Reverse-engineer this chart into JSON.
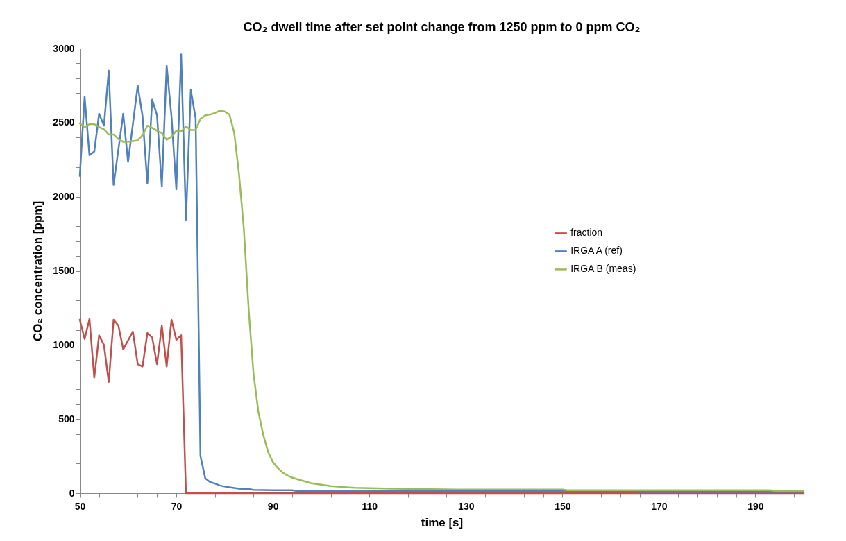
{
  "chart_data": {
    "type": "line",
    "title": "CO₂ dwell time after set point change from 1250 ppm to 0 ppm CO₂",
    "xlabel": "time [s]",
    "ylabel": "CO₂ concentration [ppm]",
    "xlim": [
      50,
      200
    ],
    "xticks": [
      50,
      {
        "value": 54,
        "label": null
      },
      {
        "value": 58,
        "label": null
      },
      {
        "value": 62,
        "label": null
      },
      {
        "value": 66,
        "label": null
      },
      70,
      {
        "value": 74,
        "label": null
      },
      {
        "value": 78,
        "label": null
      },
      {
        "value": 82,
        "label": null
      },
      {
        "value": 86,
        "label": null
      },
      90,
      {
        "value": 94,
        "label": null
      },
      {
        "value": 98,
        "label": null
      },
      {
        "value": 102,
        "label": null
      },
      {
        "value": 106,
        "label": null
      },
      110,
      {
        "value": 114,
        "label": null
      },
      {
        "value": 118,
        "label": null
      },
      {
        "value": 122,
        "label": null
      },
      {
        "value": 126,
        "label": null
      },
      130,
      {
        "value": 134,
        "label": null
      },
      {
        "value": 138,
        "label": null
      },
      {
        "value": 142,
        "label": null
      },
      {
        "value": 146,
        "label": null
      },
      150,
      {
        "value": 154,
        "label": null
      },
      {
        "value": 158,
        "label": null
      },
      {
        "value": 162,
        "label": null
      },
      {
        "value": 166,
        "label": null
      },
      170,
      {
        "value": 174,
        "label": null
      },
      {
        "value": 178,
        "label": null
      },
      {
        "value": 182,
        "label": null
      },
      {
        "value": 186,
        "label": null
      },
      190,
      {
        "value": 194,
        "label": null
      },
      {
        "value": 198,
        "label": null
      }
    ],
    "ylim": [
      0,
      3000
    ],
    "yticks": [
      0,
      {
        "value": 100,
        "label": null
      },
      {
        "value": 200,
        "label": null
      },
      {
        "value": 300,
        "label": null
      },
      {
        "value": 400,
        "label": null
      },
      500,
      {
        "value": 600,
        "label": null
      },
      {
        "value": 700,
        "label": null
      },
      {
        "value": 800,
        "label": null
      },
      {
        "value": 900,
        "label": null
      },
      1000,
      {
        "value": 1100,
        "label": null
      },
      {
        "value": 1200,
        "label": null
      },
      {
        "value": 1300,
        "label": null
      },
      {
        "value": 1400,
        "label": null
      },
      1500,
      {
        "value": 1600,
        "label": null
      },
      {
        "value": 1700,
        "label": null
      },
      {
        "value": 1800,
        "label": null
      },
      {
        "value": 1900,
        "label": null
      },
      2000,
      {
        "value": 2100,
        "label": null
      },
      {
        "value": 2200,
        "label": null
      },
      {
        "value": 2300,
        "label": null
      },
      {
        "value": 2400,
        "label": null
      },
      2500,
      {
        "value": 2600,
        "label": null
      },
      {
        "value": 2700,
        "label": null
      },
      {
        "value": 2800,
        "label": null
      },
      {
        "value": 2900,
        "label": null
      },
      3000
    ],
    "grid": false,
    "legend": "right",
    "marker": "none",
    "line_style": "solid",
    "series": [
      {
        "name": "fraction",
        "color": "#c0504d",
        "x": [
          50,
          51,
          52,
          53,
          54,
          55,
          56,
          57,
          58,
          59,
          60,
          61,
          62,
          63,
          64,
          65,
          66,
          67,
          68,
          69,
          70,
          71,
          72,
          200
        ],
        "values": [
          1170,
          1040,
          1175,
          780,
          1065,
          1000,
          750,
          1170,
          1130,
          970,
          1030,
          1090,
          870,
          855,
          1080,
          1050,
          870,
          1130,
          855,
          1170,
          1035,
          1065,
          0,
          0
        ]
      },
      {
        "name": "IRGA A (ref)",
        "color": "#4f81bd",
        "x": [
          50,
          51,
          52,
          53,
          54,
          55,
          56,
          57,
          58,
          59,
          60,
          61,
          62,
          63,
          64,
          65,
          66,
          67,
          68,
          69,
          70,
          71,
          72,
          73,
          74,
          75,
          76,
          77,
          78,
          79,
          80,
          81,
          82,
          83,
          84,
          85,
          86,
          90,
          94,
          95,
          165,
          166,
          200
        ],
        "values": [
          2140,
          2675,
          2280,
          2305,
          2560,
          2480,
          2850,
          2080,
          2320,
          2560,
          2235,
          2490,
          2750,
          2545,
          2090,
          2655,
          2550,
          2070,
          2885,
          2540,
          2050,
          2960,
          1845,
          2720,
          2530,
          250,
          100,
          75,
          65,
          52,
          45,
          40,
          35,
          30,
          28,
          28,
          22,
          20,
          20,
          14,
          14,
          8,
          8
        ]
      },
      {
        "name": "IRGA B (meas)",
        "color": "#9bbb59",
        "x": [
          50,
          51,
          52,
          53,
          54,
          55,
          56,
          57,
          58,
          59,
          60,
          61,
          62,
          63,
          64,
          65,
          66,
          67,
          68,
          69,
          70,
          71,
          72,
          73,
          74,
          75,
          76,
          77,
          78,
          79,
          80,
          81,
          82,
          83,
          84,
          85,
          86,
          87,
          88,
          89,
          90,
          91,
          92,
          93,
          94,
          95,
          98,
          102,
          107,
          115,
          128,
          150,
          151,
          193,
          194,
          200
        ],
        "values": [
          2495,
          2470,
          2490,
          2490,
          2470,
          2455,
          2420,
          2420,
          2390,
          2370,
          2370,
          2375,
          2380,
          2415,
          2480,
          2465,
          2445,
          2430,
          2385,
          2405,
          2445,
          2440,
          2475,
          2450,
          2450,
          2525,
          2550,
          2555,
          2565,
          2580,
          2575,
          2555,
          2430,
          2150,
          1780,
          1235,
          805,
          550,
          395,
          280,
          210,
          170,
          140,
          120,
          105,
          95,
          67,
          48,
          36,
          31,
          25,
          25,
          20,
          20,
          15,
          15
        ]
      }
    ]
  }
}
